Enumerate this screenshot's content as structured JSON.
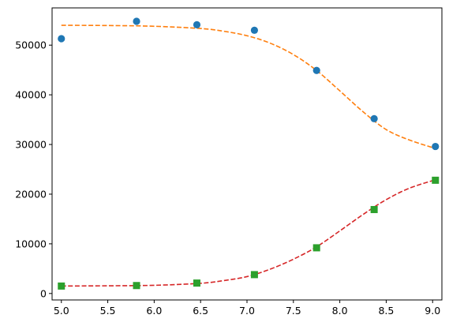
{
  "chart_data": {
    "type": "scatter",
    "title": "",
    "xlabel": "",
    "ylabel": "",
    "xlim": [
      4.9,
      9.1
    ],
    "ylim": [
      -1300,
      57500
    ],
    "grid": false,
    "legend": false,
    "xticks": [
      5.0,
      5.5,
      6.0,
      6.5,
      7.0,
      7.5,
      8.0,
      8.5,
      9.0
    ],
    "xtick_labels": [
      "5.0",
      "5.5",
      "6.0",
      "6.5",
      "7.0",
      "7.5",
      "8.0",
      "8.5",
      "9.0"
    ],
    "yticks": [
      0,
      10000,
      20000,
      30000,
      40000,
      50000
    ],
    "ytick_labels": [
      "0",
      "10000",
      "20000",
      "30000",
      "40000",
      "50000"
    ],
    "series": [
      {
        "kind": "points",
        "marker": "circle",
        "color": "#1f77b4",
        "x": [
          5.0,
          5.81,
          6.46,
          7.08,
          7.75,
          8.37,
          9.03
        ],
        "y": [
          51300,
          54800,
          54100,
          53000,
          44900,
          35200,
          29600
        ]
      },
      {
        "kind": "fit-line",
        "style": "dashed",
        "color": "#ff7f0e",
        "x": [
          5.0,
          5.5,
          6.0,
          6.5,
          6.75,
          7.0,
          7.25,
          7.5,
          7.75,
          8.0,
          8.25,
          8.5,
          8.75,
          9.03
        ],
        "y": [
          54000,
          53950,
          53800,
          53350,
          52800,
          51900,
          50400,
          48100,
          44900,
          40800,
          36600,
          33000,
          30900,
          29200
        ]
      },
      {
        "kind": "points",
        "marker": "square",
        "color": "#2ca02c",
        "x": [
          5.0,
          5.81,
          6.46,
          7.08,
          7.75,
          8.37,
          9.03
        ],
        "y": [
          1500,
          1600,
          2100,
          3800,
          9200,
          16900,
          22800
        ]
      },
      {
        "kind": "fit-line",
        "style": "dashed",
        "color": "#d62728",
        "x": [
          5.0,
          5.5,
          6.0,
          6.5,
          6.75,
          7.0,
          7.25,
          7.5,
          7.75,
          8.0,
          8.25,
          8.5,
          8.75,
          9.03
        ],
        "y": [
          1500,
          1550,
          1650,
          2050,
          2600,
          3400,
          4900,
          6900,
          9400,
          12600,
          15900,
          18900,
          21200,
          22900
        ]
      }
    ]
  }
}
